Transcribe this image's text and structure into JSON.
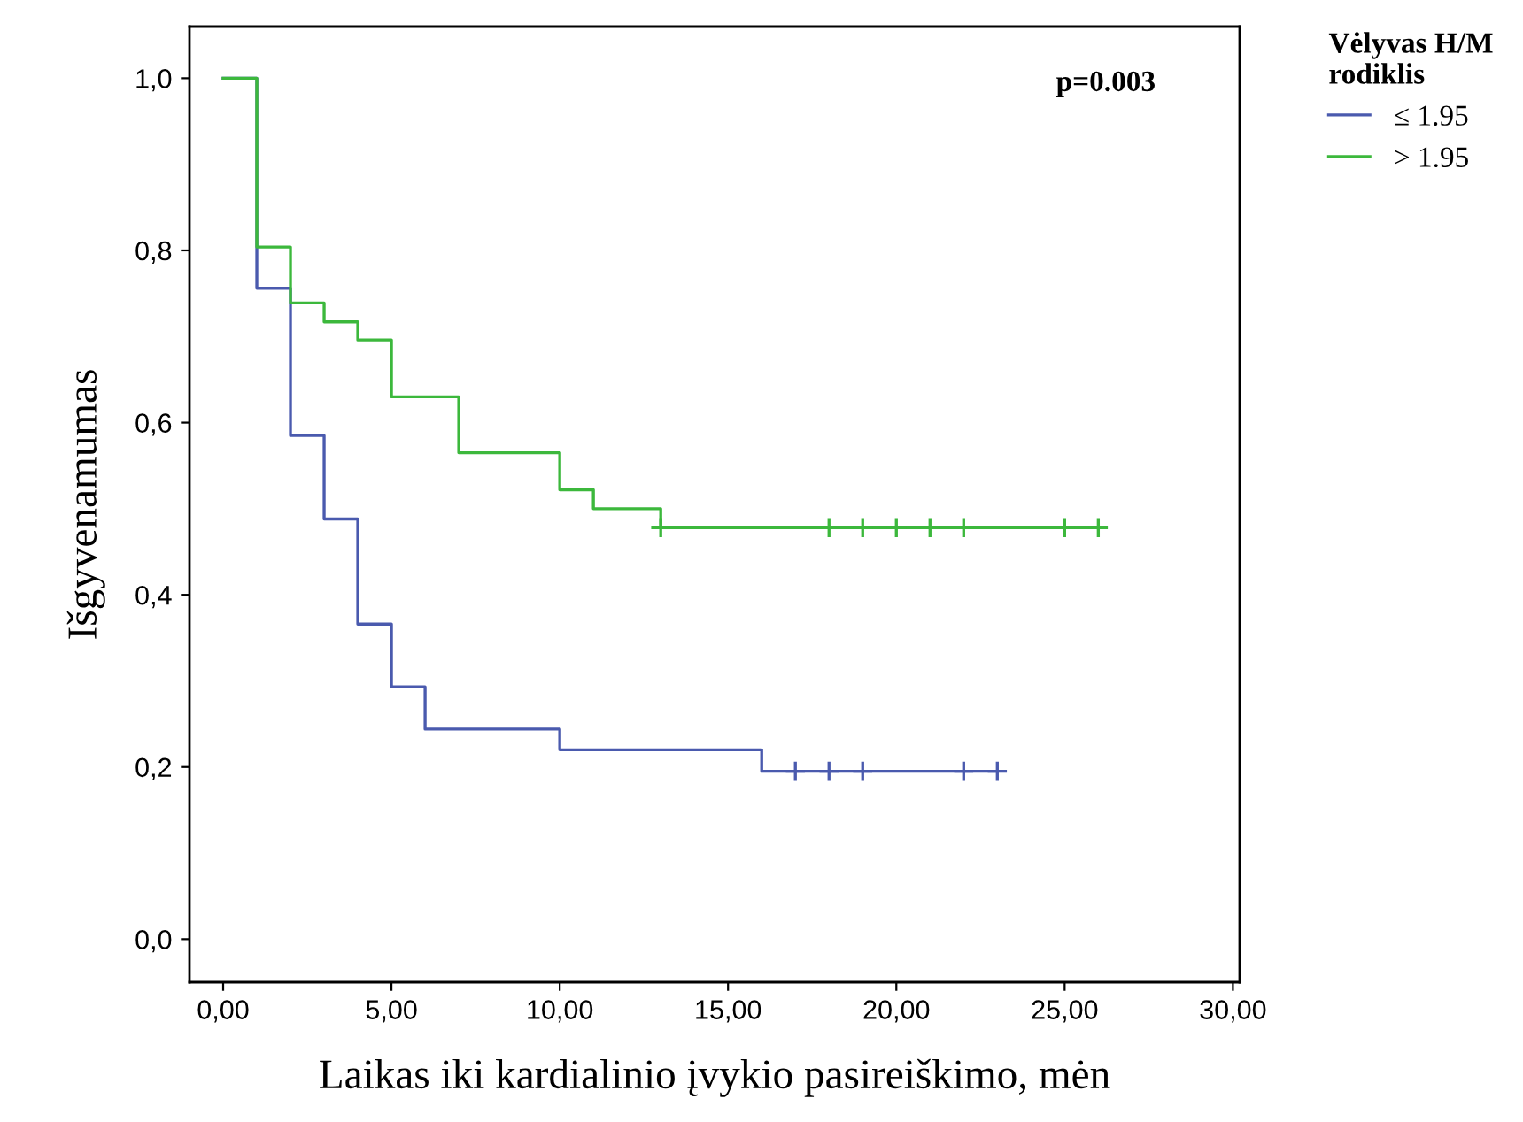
{
  "chart_data": {
    "type": "step",
    "xlabel": "Laikas iki kardialinio įvykio pasireiškimo, mėn",
    "ylabel": "Išgyvenamumas",
    "legend_title": "Vėlyvas H/M\nrodiklis",
    "annotations": [
      "p=0.003"
    ],
    "series": [
      {
        "name": "≤ 1.95",
        "color": "#4a5aae",
        "x": [
          0,
          1,
          2,
          3,
          4,
          5,
          6,
          10,
          16,
          23
        ],
        "values": [
          1.0,
          0.756,
          0.585,
          0.488,
          0.366,
          0.293,
          0.244,
          0.22,
          0.195,
          0.195
        ]
      },
      {
        "name": "> 1.95",
        "color": "#3cb83c",
        "x": [
          0,
          1,
          2,
          3,
          4,
          5,
          7,
          10,
          11,
          13,
          26
        ],
        "values": [
          1.0,
          0.804,
          0.739,
          0.717,
          0.696,
          0.63,
          0.565,
          0.522,
          0.5,
          0.478,
          0.478
        ]
      },
      {
        "type": "scatter",
        "marker": "cross",
        "color": "#4a5aae",
        "x": [
          17,
          18,
          19,
          22,
          23
        ],
        "values": [
          0.195,
          0.195,
          0.195,
          0.195,
          0.195
        ]
      },
      {
        "type": "scatter",
        "marker": "cross",
        "color": "#3cb83c",
        "x": [
          13,
          18,
          19,
          20,
          21,
          22,
          25,
          26
        ],
        "values": [
          0.478,
          0.478,
          0.478,
          0.478,
          0.478,
          0.478,
          0.478,
          0.478
        ]
      }
    ],
    "xlim": [
      -1.0,
      30.2
    ],
    "ylim": [
      -0.05,
      1.06
    ],
    "xticks": [
      {
        "value": 0,
        "label": "0,00"
      },
      {
        "value": 5,
        "label": "5,00"
      },
      {
        "value": 10,
        "label": "10,00"
      },
      {
        "value": 15,
        "label": "15,00"
      },
      {
        "value": 20,
        "label": "20,00"
      },
      {
        "value": 25,
        "label": "25,00"
      },
      {
        "value": 30,
        "label": "30,00"
      }
    ],
    "yticks": [
      {
        "value": 0,
        "label": "0,0"
      },
      {
        "value": 0.2,
        "label": "0,2"
      },
      {
        "value": 0.4,
        "label": "0,4"
      },
      {
        "value": 0.6,
        "label": "0,6"
      },
      {
        "value": 0.8,
        "label": "0,8"
      },
      {
        "value": 1.0,
        "label": "1,0"
      }
    ],
    "grid": false,
    "legend": "top right",
    "marker": "none",
    "line_style": "solid"
  }
}
